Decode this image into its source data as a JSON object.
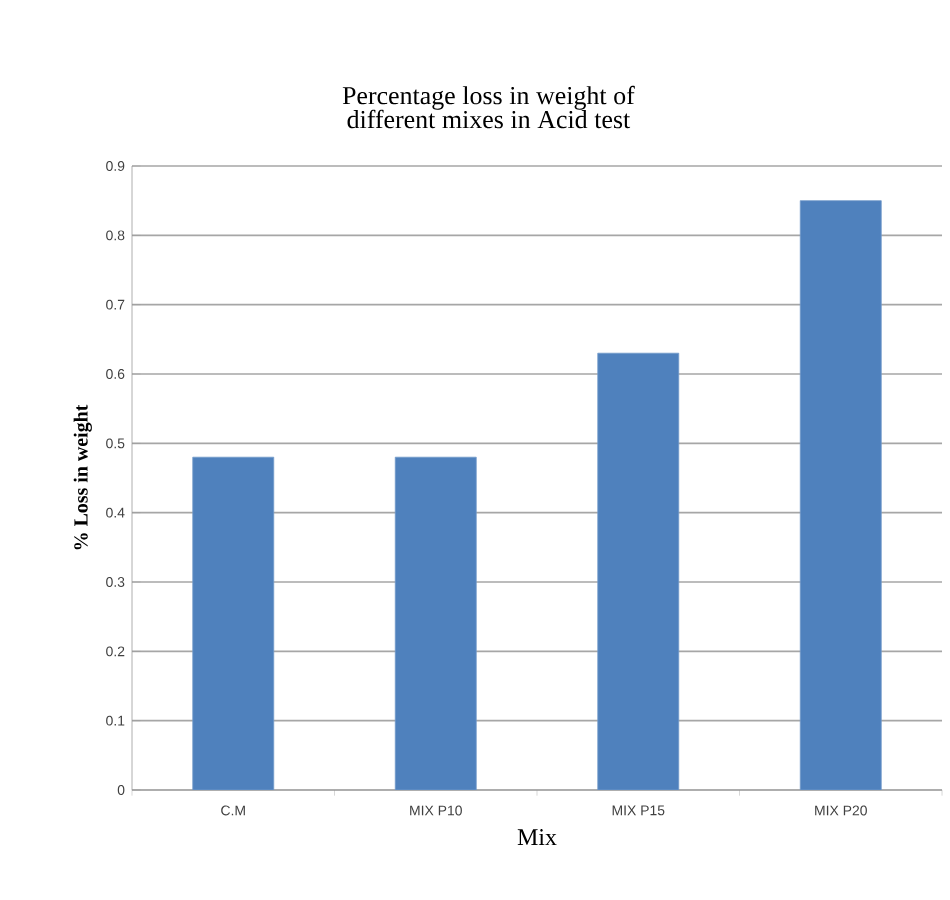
{
  "chart_data": {
    "type": "bar",
    "title": "Percentage loss in weight of different mixes in Acid test",
    "xlabel": "Mix",
    "ylabel": "% Loss in weight",
    "categories": [
      "C.M",
      "MIX P10",
      "MIX P15",
      "MIX P20"
    ],
    "values": [
      0.48,
      0.48,
      0.63,
      0.85
    ],
    "color": "#4f81bd",
    "ylim": [
      0,
      0.9
    ],
    "yticks": [
      0,
      0.1,
      0.2,
      0.3,
      0.4,
      0.5,
      0.6,
      0.7,
      0.8,
      0.9
    ],
    "grid": "y"
  }
}
